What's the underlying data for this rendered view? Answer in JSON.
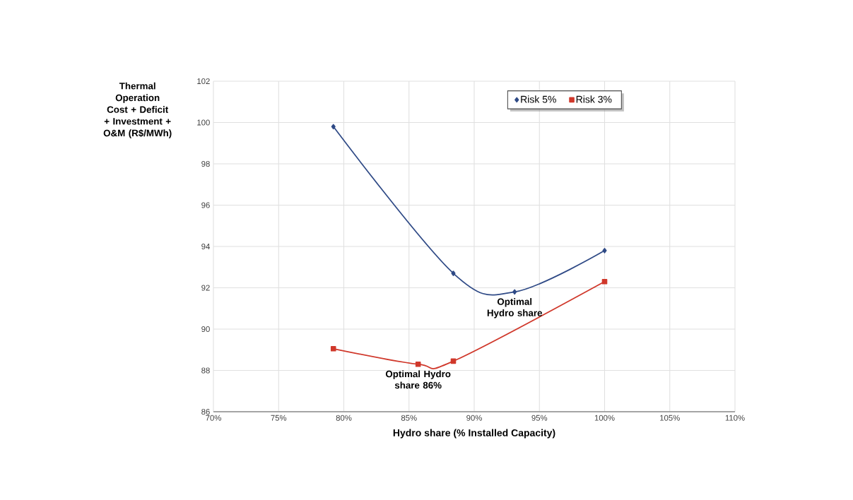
{
  "chart_data": {
    "type": "line",
    "xlabel": "Hydro share (% Installed Capacity)",
    "ylabel": "Thermal Operation Cost + Deficit + Investment + O&M (R$/MWh)",
    "series": [
      {
        "name": "Risk 5%",
        "color": "#2f4a86",
        "marker": "diamond",
        "x": [
          79.2,
          88.4,
          93.1,
          100
        ],
        "values": [
          99.8,
          92.7,
          91.8,
          93.8
        ]
      },
      {
        "name": "Risk 3%",
        "color": "#d0382b",
        "marker": "square",
        "x": [
          79.2,
          85.7,
          88.4,
          100
        ],
        "values": [
          89.05,
          88.3,
          88.45,
          92.3
        ]
      }
    ],
    "xlim": [
      70,
      110
    ],
    "xticks": [
      {
        "value": 70,
        "label": "70%"
      },
      {
        "value": 75,
        "label": "75%"
      },
      {
        "value": 80,
        "label": "80%"
      },
      {
        "value": 85,
        "label": "85%"
      },
      {
        "value": 90,
        "label": "90%"
      },
      {
        "value": 95,
        "label": "95%"
      },
      {
        "value": 100,
        "label": "100%"
      },
      {
        "value": 105,
        "label": "105%"
      },
      {
        "value": 110,
        "label": "110%"
      }
    ],
    "ylim": [
      86,
      102
    ],
    "yticks": [
      86,
      88,
      90,
      92,
      94,
      96,
      98,
      100,
      102
    ],
    "grid": true,
    "legend": "top right",
    "line_style": "solid",
    "annotations": [
      {
        "text": "Optimal Hydro share",
        "x": 93.1,
        "y": 91.8
      },
      {
        "text": "Optimal Hydro share 86%",
        "x": 85.7,
        "y": 88.3
      }
    ]
  }
}
